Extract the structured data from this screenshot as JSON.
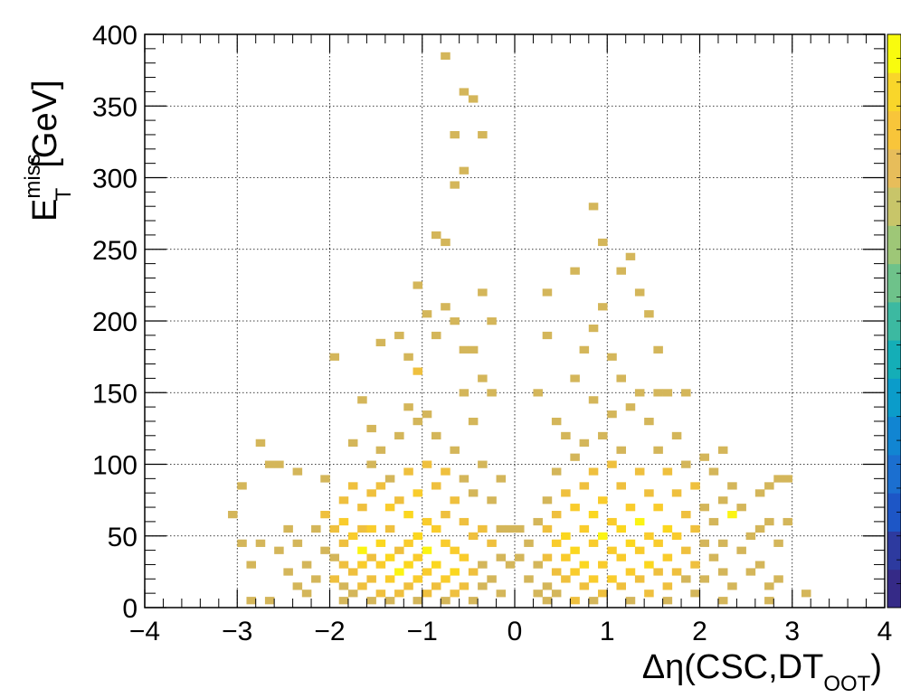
{
  "chart_data": {
    "type": "heatmap",
    "title": "",
    "xlabel": {
      "main": "Δη(CSC,DT",
      "sub": "OOT",
      "close": ")"
    },
    "ylabel": {
      "main": "E",
      "sup": "miss",
      "sub": "T",
      "unit": "[GeV]"
    },
    "xlim": [
      -4,
      4
    ],
    "ylim": [
      0,
      400
    ],
    "xticks": [
      "−4",
      "−3",
      "−2",
      "−1",
      "0",
      "1",
      "2",
      "3",
      "4"
    ],
    "yticks": [
      "0",
      "50",
      "100",
      "150",
      "200",
      "250",
      "300",
      "350",
      "400"
    ],
    "grid": true,
    "bin_width": [
      0.1,
      5
    ],
    "palette": [
      "#352a87",
      "#2d3a9f",
      "#1d56c6",
      "#1b6fd0",
      "#1185d2",
      "#0b9cca",
      "#14aeb7",
      "#3cb9a1",
      "#6ec28a",
      "#9ec777",
      "#c8c569",
      "#e7bd5a",
      "#f8c53a",
      "#f9d62a",
      "#f9fb0e"
    ],
    "bin_colors": {
      "1": "#d4b65a",
      "2": "#efc03e",
      "3": "#f9cc2c",
      "4": "#fbd71f",
      "5": "#fbf413"
    },
    "bins": [
      [
        -3.05,
        65,
        1
      ],
      [
        -2.95,
        85,
        1
      ],
      [
        -2.95,
        45,
        1
      ],
      [
        -2.85,
        30,
        1
      ],
      [
        -2.75,
        45,
        1
      ],
      [
        -2.85,
        5,
        1
      ],
      [
        -2.65,
        5,
        1
      ],
      [
        -2.75,
        115,
        1
      ],
      [
        -2.65,
        100,
        1
      ],
      [
        -2.55,
        100,
        1
      ],
      [
        -2.55,
        40,
        1
      ],
      [
        -2.45,
        55,
        1
      ],
      [
        -2.45,
        25,
        1
      ],
      [
        -2.35,
        95,
        1
      ],
      [
        -2.35,
        45,
        1
      ],
      [
        -2.35,
        15,
        1
      ],
      [
        -2.25,
        10,
        1
      ],
      [
        -2.25,
        30,
        1
      ],
      [
        -2.15,
        55,
        1
      ],
      [
        -2.15,
        20,
        1
      ],
      [
        -2.05,
        90,
        1
      ],
      [
        -2.05,
        65,
        2
      ],
      [
        -2.05,
        40,
        1
      ],
      [
        -1.95,
        55,
        2
      ],
      [
        -1.95,
        35,
        1
      ],
      [
        -1.95,
        20,
        2
      ],
      [
        -1.95,
        175,
        1
      ],
      [
        -1.85,
        75,
        2
      ],
      [
        -1.85,
        60,
        3
      ],
      [
        -1.85,
        45,
        2
      ],
      [
        -1.85,
        30,
        2
      ],
      [
        -1.85,
        15,
        1
      ],
      [
        -1.85,
        5,
        1
      ],
      [
        -1.75,
        115,
        1
      ],
      [
        -1.75,
        85,
        2
      ],
      [
        -1.75,
        50,
        3
      ],
      [
        -1.75,
        25,
        2
      ],
      [
        -1.75,
        10,
        1
      ],
      [
        -1.65,
        145,
        1
      ],
      [
        -1.65,
        70,
        2
      ],
      [
        -1.65,
        55,
        2
      ],
      [
        -1.65,
        40,
        5
      ],
      [
        -1.65,
        30,
        3
      ],
      [
        -1.65,
        15,
        2
      ],
      [
        -1.55,
        125,
        1
      ],
      [
        -1.55,
        100,
        1
      ],
      [
        -1.55,
        80,
        2
      ],
      [
        -1.55,
        55,
        3
      ],
      [
        -1.55,
        35,
        2
      ],
      [
        -1.55,
        20,
        2
      ],
      [
        -1.55,
        5,
        1
      ],
      [
        -1.45,
        185,
        1
      ],
      [
        -1.45,
        110,
        1
      ],
      [
        -1.45,
        85,
        2
      ],
      [
        -1.45,
        45,
        4
      ],
      [
        -1.45,
        30,
        3
      ],
      [
        -1.45,
        10,
        2
      ],
      [
        -1.35,
        90,
        1
      ],
      [
        -1.35,
        70,
        3
      ],
      [
        -1.35,
        55,
        2
      ],
      [
        -1.35,
        35,
        4
      ],
      [
        -1.35,
        20,
        3
      ],
      [
        -1.35,
        5,
        1
      ],
      [
        -1.25,
        190,
        1
      ],
      [
        -1.25,
        120,
        1
      ],
      [
        -1.25,
        75,
        2
      ],
      [
        -1.25,
        40,
        2
      ],
      [
        -1.25,
        25,
        5
      ],
      [
        -1.25,
        10,
        2
      ],
      [
        -1.15,
        175,
        1
      ],
      [
        -1.15,
        140,
        1
      ],
      [
        -1.15,
        95,
        2
      ],
      [
        -1.15,
        65,
        4
      ],
      [
        -1.15,
        45,
        3
      ],
      [
        -1.15,
        30,
        4
      ],
      [
        -1.15,
        15,
        2
      ],
      [
        -1.05,
        225,
        1
      ],
      [
        -1.05,
        165,
        2
      ],
      [
        -1.05,
        130,
        1
      ],
      [
        -1.05,
        80,
        3
      ],
      [
        -1.05,
        50,
        4
      ],
      [
        -1.05,
        35,
        3
      ],
      [
        -1.05,
        20,
        3
      ],
      [
        -1.05,
        5,
        1
      ],
      [
        -0.95,
        205,
        1
      ],
      [
        -0.95,
        135,
        1
      ],
      [
        -0.95,
        100,
        2
      ],
      [
        -0.95,
        60,
        3
      ],
      [
        -0.95,
        40,
        5
      ],
      [
        -0.95,
        25,
        3
      ],
      [
        -0.95,
        10,
        2
      ],
      [
        -0.85,
        260,
        1
      ],
      [
        -0.85,
        190,
        1
      ],
      [
        -0.85,
        120,
        1
      ],
      [
        -0.85,
        85,
        2
      ],
      [
        -0.85,
        55,
        3
      ],
      [
        -0.85,
        30,
        4
      ],
      [
        -0.85,
        15,
        2
      ],
      [
        -0.75,
        385,
        1
      ],
      [
        -0.75,
        210,
        1
      ],
      [
        -0.75,
        255,
        1
      ],
      [
        -0.75,
        95,
        2
      ],
      [
        -0.75,
        65,
        2
      ],
      [
        -0.75,
        45,
        3
      ],
      [
        -0.75,
        20,
        3
      ],
      [
        -0.75,
        5,
        1
      ],
      [
        -0.65,
        330,
        1
      ],
      [
        -0.65,
        295,
        1
      ],
      [
        -0.65,
        200,
        1
      ],
      [
        -0.65,
        110,
        1
      ],
      [
        -0.65,
        75,
        2
      ],
      [
        -0.65,
        40,
        3
      ],
      [
        -0.65,
        25,
        4
      ],
      [
        -0.65,
        10,
        2
      ],
      [
        -0.55,
        360,
        1
      ],
      [
        -0.55,
        305,
        1
      ],
      [
        -0.55,
        180,
        1
      ],
      [
        -0.55,
        150,
        1
      ],
      [
        -0.55,
        90,
        1
      ],
      [
        -0.55,
        60,
        2
      ],
      [
        -0.55,
        35,
        3
      ],
      [
        -0.55,
        15,
        2
      ],
      [
        -0.45,
        355,
        1
      ],
      [
        -0.45,
        180,
        1
      ],
      [
        -0.45,
        130,
        1
      ],
      [
        -0.45,
        80,
        1
      ],
      [
        -0.45,
        50,
        2
      ],
      [
        -0.45,
        25,
        2
      ],
      [
        -0.45,
        5,
        1
      ],
      [
        -0.35,
        330,
        1
      ],
      [
        -0.35,
        220,
        1
      ],
      [
        -0.35,
        160,
        1
      ],
      [
        -0.35,
        100,
        1
      ],
      [
        -0.35,
        55,
        2
      ],
      [
        -0.35,
        30,
        1
      ],
      [
        -0.35,
        15,
        1
      ],
      [
        -0.25,
        200,
        1
      ],
      [
        -0.25,
        150,
        1
      ],
      [
        -0.25,
        75,
        1
      ],
      [
        -0.25,
        45,
        2
      ],
      [
        -0.25,
        20,
        1
      ],
      [
        -0.15,
        90,
        1
      ],
      [
        -0.15,
        55,
        1
      ],
      [
        -0.15,
        35,
        1
      ],
      [
        -0.15,
        10,
        1
      ],
      [
        -0.05,
        55,
        1
      ],
      [
        -0.05,
        30,
        1
      ],
      [
        0.05,
        55,
        1
      ],
      [
        0.05,
        35,
        1
      ],
      [
        0.15,
        45,
        1
      ],
      [
        0.15,
        20,
        1
      ],
      [
        0.25,
        150,
        1
      ],
      [
        0.25,
        60,
        1
      ],
      [
        0.25,
        30,
        1
      ],
      [
        0.25,
        10,
        1
      ],
      [
        0.35,
        220,
        1
      ],
      [
        0.35,
        190,
        1
      ],
      [
        0.35,
        75,
        1
      ],
      [
        0.35,
        55,
        2
      ],
      [
        0.35,
        35,
        2
      ],
      [
        0.35,
        15,
        1
      ],
      [
        0.35,
        5,
        1
      ],
      [
        0.45,
        130,
        1
      ],
      [
        0.45,
        95,
        1
      ],
      [
        0.45,
        65,
        2
      ],
      [
        0.45,
        45,
        3
      ],
      [
        0.45,
        25,
        2
      ],
      [
        0.45,
        10,
        1
      ],
      [
        0.55,
        120,
        1
      ],
      [
        0.55,
        80,
        2
      ],
      [
        0.55,
        50,
        4
      ],
      [
        0.55,
        35,
        3
      ],
      [
        0.55,
        20,
        2
      ],
      [
        0.65,
        235,
        1
      ],
      [
        0.65,
        160,
        1
      ],
      [
        0.65,
        105,
        1
      ],
      [
        0.65,
        70,
        3
      ],
      [
        0.65,
        40,
        4
      ],
      [
        0.65,
        25,
        3
      ],
      [
        0.65,
        5,
        2
      ],
      [
        0.75,
        180,
        1
      ],
      [
        0.75,
        115,
        1
      ],
      [
        0.75,
        85,
        2
      ],
      [
        0.75,
        55,
        3
      ],
      [
        0.75,
        30,
        4
      ],
      [
        0.75,
        15,
        2
      ],
      [
        0.85,
        280,
        1
      ],
      [
        0.85,
        195,
        1
      ],
      [
        0.85,
        145,
        1
      ],
      [
        0.85,
        95,
        2
      ],
      [
        0.85,
        65,
        4
      ],
      [
        0.85,
        45,
        3
      ],
      [
        0.85,
        20,
        3
      ],
      [
        0.85,
        5,
        1
      ],
      [
        0.95,
        255,
        1
      ],
      [
        0.95,
        210,
        1
      ],
      [
        0.95,
        120,
        1
      ],
      [
        0.95,
        75,
        3
      ],
      [
        0.95,
        50,
        5
      ],
      [
        0.95,
        30,
        3
      ],
      [
        0.95,
        10,
        2
      ],
      [
        1.05,
        175,
        1
      ],
      [
        1.05,
        135,
        1
      ],
      [
        1.05,
        100,
        2
      ],
      [
        1.05,
        60,
        3
      ],
      [
        1.05,
        40,
        3
      ],
      [
        1.05,
        20,
        3
      ],
      [
        1.15,
        235,
        1
      ],
      [
        1.15,
        160,
        1
      ],
      [
        1.15,
        110,
        1
      ],
      [
        1.15,
        85,
        2
      ],
      [
        1.15,
        55,
        4
      ],
      [
        1.15,
        35,
        3
      ],
      [
        1.15,
        15,
        2
      ],
      [
        1.25,
        245,
        1
      ],
      [
        1.25,
        140,
        1
      ],
      [
        1.25,
        70,
        3
      ],
      [
        1.25,
        45,
        4
      ],
      [
        1.25,
        25,
        3
      ],
      [
        1.25,
        5,
        1
      ],
      [
        1.35,
        220,
        1
      ],
      [
        1.35,
        150,
        1
      ],
      [
        1.35,
        95,
        2
      ],
      [
        1.35,
        60,
        5
      ],
      [
        1.35,
        40,
        3
      ],
      [
        1.35,
        20,
        2
      ],
      [
        1.45,
        205,
        1
      ],
      [
        1.45,
        130,
        1
      ],
      [
        1.45,
        80,
        2
      ],
      [
        1.45,
        50,
        3
      ],
      [
        1.45,
        30,
        4
      ],
      [
        1.45,
        10,
        2
      ],
      [
        1.55,
        180,
        1
      ],
      [
        1.55,
        150,
        1
      ],
      [
        1.55,
        110,
        1
      ],
      [
        1.55,
        70,
        3
      ],
      [
        1.55,
        45,
        3
      ],
      [
        1.55,
        25,
        2
      ],
      [
        1.65,
        150,
        1
      ],
      [
        1.65,
        95,
        2
      ],
      [
        1.65,
        55,
        4
      ],
      [
        1.65,
        35,
        3
      ],
      [
        1.65,
        15,
        2
      ],
      [
        1.65,
        5,
        1
      ],
      [
        1.75,
        120,
        1
      ],
      [
        1.75,
        80,
        2
      ],
      [
        1.75,
        50,
        3
      ],
      [
        1.75,
        25,
        2
      ],
      [
        1.85,
        150,
        1
      ],
      [
        1.85,
        100,
        1
      ],
      [
        1.85,
        65,
        2
      ],
      [
        1.85,
        40,
        2
      ],
      [
        1.85,
        20,
        1
      ],
      [
        1.95,
        85,
        2
      ],
      [
        1.95,
        55,
        2
      ],
      [
        1.95,
        30,
        2
      ],
      [
        1.95,
        10,
        1
      ],
      [
        2.05,
        105,
        1
      ],
      [
        2.05,
        70,
        1
      ],
      [
        2.05,
        45,
        1
      ],
      [
        2.05,
        20,
        1
      ],
      [
        2.15,
        95,
        1
      ],
      [
        2.15,
        60,
        1
      ],
      [
        2.15,
        35,
        1
      ],
      [
        2.25,
        110,
        1
      ],
      [
        2.25,
        75,
        1
      ],
      [
        2.25,
        45,
        1
      ],
      [
        2.25,
        25,
        1
      ],
      [
        2.25,
        5,
        1
      ],
      [
        2.35,
        85,
        1
      ],
      [
        2.35,
        65,
        5
      ],
      [
        2.35,
        15,
        1
      ],
      [
        2.45,
        70,
        1
      ],
      [
        2.45,
        40,
        1
      ],
      [
        2.55,
        50,
        1
      ],
      [
        2.55,
        25,
        1
      ],
      [
        2.65,
        80,
        1
      ],
      [
        2.65,
        55,
        1
      ],
      [
        2.65,
        30,
        1
      ],
      [
        2.75,
        85,
        1
      ],
      [
        2.75,
        60,
        1
      ],
      [
        2.75,
        15,
        1
      ],
      [
        2.75,
        5,
        1
      ],
      [
        2.85,
        90,
        1
      ],
      [
        2.85,
        45,
        1
      ],
      [
        2.85,
        20,
        1
      ],
      [
        2.95,
        90,
        1
      ],
      [
        2.95,
        60,
        1
      ],
      [
        3.15,
        10,
        1
      ]
    ]
  }
}
